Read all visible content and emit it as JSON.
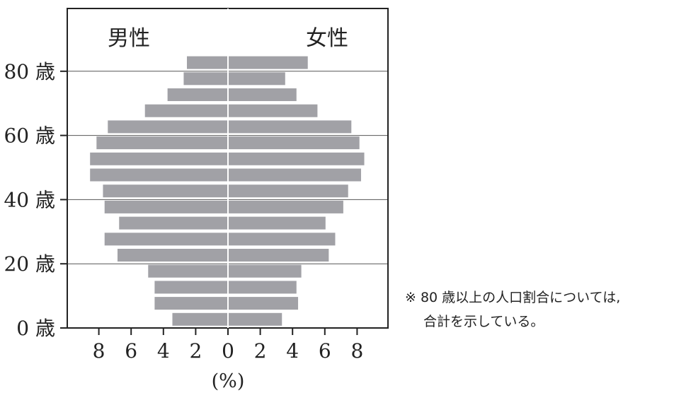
{
  "chart_data": {
    "type": "bar",
    "subtype": "population-pyramid",
    "left_label": "男性",
    "right_label": "女性",
    "xlabel": "(%)",
    "xlim": [
      -10,
      10
    ],
    "x_tick_labels": [
      "8",
      "6",
      "4",
      "2",
      "0",
      "2",
      "4",
      "6",
      "8"
    ],
    "y_tick_labels": [
      "0 歳",
      "20 歳",
      "40 歳",
      "60 歳",
      "80 歳"
    ],
    "age_groups": [
      "0-4",
      "5-9",
      "10-14",
      "15-19",
      "20-24",
      "25-29",
      "30-34",
      "35-39",
      "40-44",
      "45-49",
      "50-54",
      "55-59",
      "60-64",
      "65-69",
      "70-74",
      "75-79",
      "80+"
    ],
    "series": [
      {
        "name": "男性",
        "values": [
          3.4,
          4.5,
          4.5,
          4.9,
          6.8,
          7.6,
          6.7,
          7.6,
          7.7,
          8.5,
          8.5,
          8.1,
          7.4,
          5.1,
          3.7,
          2.7,
          2.5
        ]
      },
      {
        "name": "女性",
        "values": [
          3.3,
          4.3,
          4.2,
          4.5,
          6.2,
          6.6,
          6.0,
          7.1,
          7.4,
          8.2,
          8.4,
          8.1,
          7.6,
          5.5,
          4.2,
          3.5,
          4.9
        ]
      }
    ],
    "colors": {
      "bar": "#a1a1a6",
      "axis": "#222222",
      "grid": "#555555"
    },
    "grid": true
  },
  "note": {
    "line1": "※ 80 歳以上の人口割合については,",
    "line2": "合計を示している。"
  }
}
